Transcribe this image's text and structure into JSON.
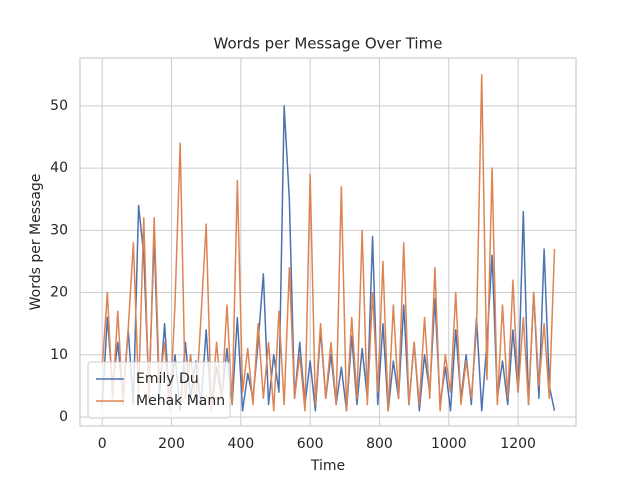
{
  "chart_data": {
    "type": "line",
    "title": "Words per Message Over Time",
    "xlabel": "Time",
    "ylabel": "Words per Message",
    "x": [
      0,
      15,
      30,
      45,
      60,
      75,
      90,
      105,
      120,
      135,
      150,
      165,
      180,
      195,
      210,
      225,
      240,
      255,
      270,
      285,
      300,
      315,
      330,
      345,
      360,
      375,
      390,
      405,
      420,
      435,
      450,
      465,
      480,
      495,
      510,
      525,
      540,
      555,
      570,
      585,
      600,
      615,
      630,
      645,
      660,
      675,
      690,
      705,
      720,
      735,
      750,
      765,
      780,
      795,
      810,
      825,
      840,
      855,
      870,
      885,
      900,
      915,
      930,
      945,
      960,
      975,
      990,
      1005,
      1020,
      1035,
      1050,
      1065,
      1080,
      1095,
      1110,
      1125,
      1140,
      1155,
      1170,
      1185,
      1200,
      1215,
      1230,
      1245,
      1260,
      1275,
      1290,
      1305
    ],
    "series": [
      {
        "name": "Emily Du",
        "color": "#4c72b0",
        "values": [
          2,
          16,
          5,
          12,
          3,
          14,
          2,
          34,
          26,
          4,
          29,
          3,
          15,
          2,
          10,
          1,
          12,
          3,
          9,
          2,
          14,
          1,
          8,
          3,
          11,
          2,
          16,
          1,
          7,
          3,
          12,
          23,
          2,
          10,
          4,
          50,
          35,
          3,
          12,
          2,
          9,
          1,
          14,
          3,
          10,
          2,
          8,
          1,
          13,
          2,
          11,
          3,
          29,
          2,
          15,
          1,
          9,
          3,
          18,
          2,
          12,
          1,
          10,
          4,
          19,
          2,
          8,
          1,
          14,
          3,
          10,
          2,
          16,
          1,
          12,
          26,
          3,
          9,
          2,
          14,
          4,
          33,
          2,
          20,
          3,
          27,
          5,
          1
        ]
      },
      {
        "name": "Mehak Mann",
        "color": "#dd8452",
        "values": [
          8,
          20,
          3,
          17,
          2,
          14,
          28,
          4,
          32,
          2,
          32,
          5,
          12,
          1,
          18,
          44,
          3,
          10,
          2,
          16,
          31,
          1,
          12,
          3,
          18,
          2,
          38,
          4,
          11,
          2,
          15,
          3,
          12,
          1,
          17,
          2,
          24,
          3,
          10,
          1,
          39,
          2,
          15,
          3,
          12,
          2,
          37,
          1,
          16,
          3,
          30,
          2,
          20,
          4,
          25,
          1,
          18,
          3,
          28,
          2,
          12,
          2,
          16,
          3,
          24,
          1,
          10,
          4,
          20,
          2,
          9,
          3,
          14,
          55,
          6,
          40,
          2,
          18,
          3,
          22,
          4,
          16,
          2,
          20,
          5,
          15,
          3,
          27
        ]
      }
    ],
    "xlim": [
      -64,
      1367
    ],
    "ylim": [
      -1.45,
      57.7
    ],
    "xticks": [
      0,
      200,
      400,
      600,
      800,
      1000,
      1200
    ],
    "yticks": [
      0,
      10,
      20,
      30,
      40,
      50
    ],
    "grid": true,
    "legend": "lower left"
  }
}
